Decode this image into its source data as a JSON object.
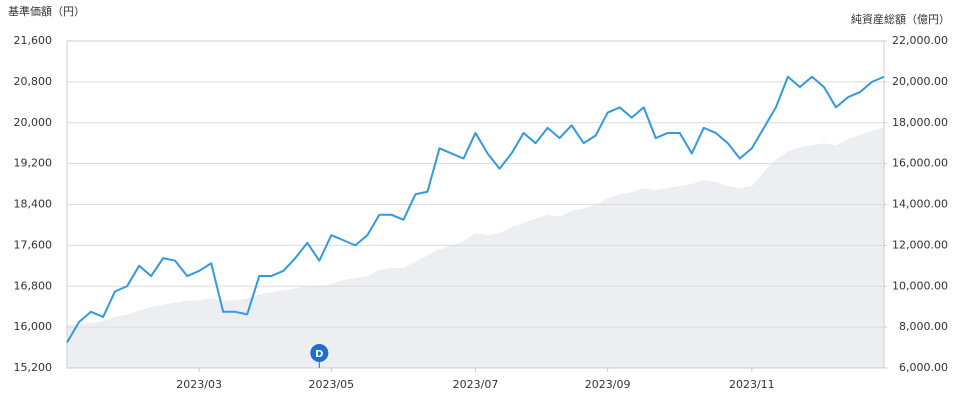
{
  "chart_data": {
    "type": "line",
    "y_label": "基準価額（円）",
    "y2_label": "純資産総額（億円）",
    "marker_label": "D",
    "grid": true,
    "categories": [
      null,
      null,
      null,
      null,
      null,
      null,
      null,
      null,
      null,
      null,
      null,
      "2023/03",
      null,
      null,
      null,
      null,
      null,
      null,
      null,
      null,
      null,
      null,
      "2023/05",
      null,
      null,
      null,
      null,
      null,
      null,
      null,
      null,
      null,
      null,
      null,
      "2023/07",
      null,
      null,
      null,
      null,
      null,
      null,
      null,
      null,
      null,
      null,
      "2023/09",
      null,
      null,
      null,
      null,
      null,
      null,
      null,
      null,
      null,
      null,
      null,
      "2023/11",
      null,
      null,
      null,
      null,
      null,
      null,
      null,
      null,
      null,
      null,
      null
    ],
    "series": [
      {
        "type": "area",
        "axis": "y2",
        "color": "#eceef2",
        "values": [
          8100,
          8150,
          8200,
          8300,
          8500,
          8600,
          8800,
          9000,
          9100,
          9200,
          9300,
          9300,
          9400,
          9300,
          9300,
          9400,
          9600,
          9700,
          9800,
          9900,
          10000,
          10000,
          10100,
          10300,
          10400,
          10500,
          10800,
          10900,
          10900,
          11200,
          11500,
          11800,
          12000,
          12200,
          12600,
          12500,
          12600,
          12900,
          13100,
          13300,
          13500,
          13400,
          13700,
          13800,
          14000,
          14300,
          14500,
          14600,
          14800,
          14700,
          14800,
          14900,
          15000,
          15200,
          15100,
          14900,
          14800,
          14900,
          15600,
          16200,
          16600,
          16800,
          16900,
          17000,
          16900,
          17200,
          17400,
          17600,
          17800
        ]
      },
      {
        "type": "line",
        "axis": "y",
        "color": "#3399e0",
        "values": [
          15700,
          16100,
          16300,
          16200,
          16700,
          16800,
          17200,
          17000,
          17350,
          17300,
          17000,
          17100,
          17250,
          16300,
          16300,
          16250,
          17000,
          17000,
          17100,
          17350,
          17650,
          17300,
          17800,
          17700,
          17600,
          17800,
          18200,
          18200,
          18100,
          18600,
          18650,
          19500,
          19400,
          19300,
          19800,
          19400,
          19100,
          19400,
          19800,
          19600,
          19900,
          19700,
          19950,
          19600,
          19750,
          20200,
          20300,
          20100,
          20300,
          19700,
          19800,
          19800,
          19400,
          19900,
          19800,
          19600,
          19300,
          19500,
          19900,
          20300,
          20900,
          20700,
          20900,
          20700,
          20300,
          20500,
          20600,
          20800,
          20900
        ]
      }
    ],
    "ylim": [
      15200,
      21600
    ],
    "yticks": [
      {
        "value": 15200,
        "label": "15,200"
      },
      {
        "value": 16000,
        "label": "16,000"
      },
      {
        "value": 16800,
        "label": "16,800"
      },
      {
        "value": 17600,
        "label": "17,600"
      },
      {
        "value": 18400,
        "label": "18,400"
      },
      {
        "value": 19200,
        "label": "19,200"
      },
      {
        "value": 20000,
        "label": "20,000"
      },
      {
        "value": 20800,
        "label": "20,800"
      },
      {
        "value": 21600,
        "label": "21,600"
      }
    ],
    "y2lim": [
      6000,
      22000
    ],
    "y2ticks": [
      {
        "value": 6000,
        "label": "6,000.00"
      },
      {
        "value": 8000,
        "label": "8,000.00"
      },
      {
        "value": 10000,
        "label": "10,000.00"
      },
      {
        "value": 12000,
        "label": "12,000.00"
      },
      {
        "value": 14000,
        "label": "14,000.00"
      },
      {
        "value": 16000,
        "label": "16,000.00"
      },
      {
        "value": 18000,
        "label": "18,000.00"
      },
      {
        "value": 20000,
        "label": "20,000.00"
      },
      {
        "value": 22000,
        "label": "22,000.00"
      }
    ]
  }
}
